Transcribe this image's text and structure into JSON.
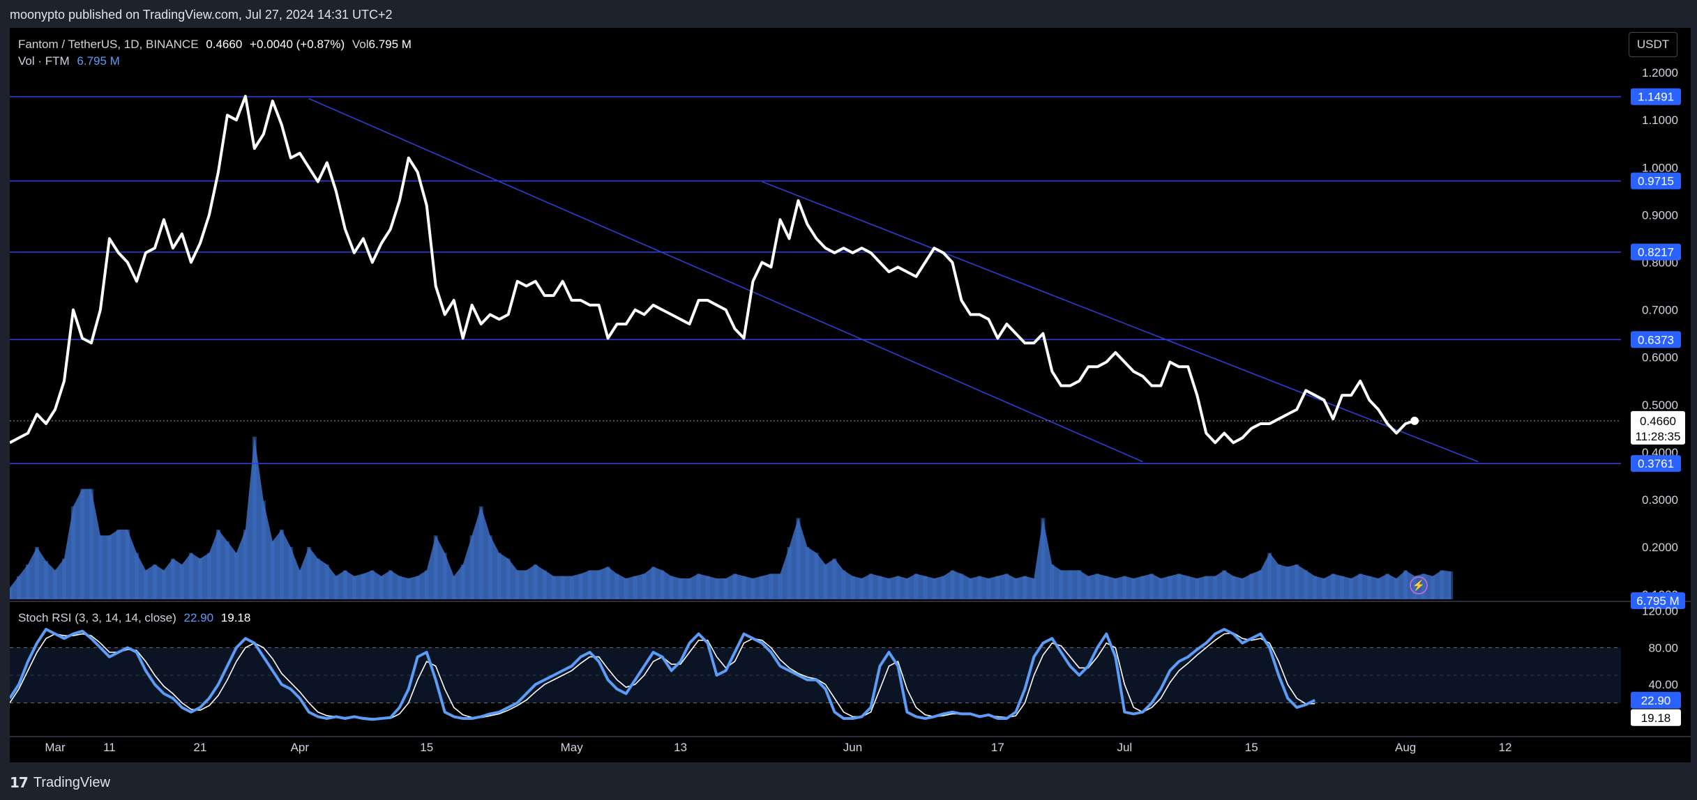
{
  "header": {
    "published": "moonypto published on TradingView.com, Jul 27, 2024 14:31 UTC+2"
  },
  "legend": {
    "symbol": "Fantom / TetherUS, 1D, BINANCE",
    "price": "0.4660",
    "change": "+0.0040 (+0.87%)",
    "vol_label": "Vol",
    "vol_value": "6.795 M",
    "vol_row_label": "Vol · FTM",
    "vol_row_value": "6.795 M"
  },
  "currency_button": "USDT",
  "footer": {
    "logo": "17",
    "brand": "TradingView"
  },
  "colors": {
    "price_line": "#ffffff",
    "level_line": "#2c3fd6",
    "trend_line": "#2c3fd6",
    "volume": "#3d6fc4",
    "rsi_k": "#5b9cf6",
    "rsi_d": "#ffffff",
    "label_blue": "#2962ff"
  },
  "chart_data": {
    "type": "line",
    "title": "Fantom / TetherUS, 1D, BINANCE",
    "y_axis_ticks": [
      "1.2000",
      "1.1000",
      "1.0000",
      "0.9000",
      "0.8000",
      "0.7000",
      "0.6000",
      "0.5000",
      "0.4000",
      "0.3000",
      "0.2000",
      "0.1000"
    ],
    "ylim": [
      0.09,
      1.25
    ],
    "x_axis_ticks": [
      {
        "label": "Mar",
        "day": 5
      },
      {
        "label": "11",
        "day": 11
      },
      {
        "label": "21",
        "day": 21
      },
      {
        "label": "Apr",
        "day": 32
      },
      {
        "label": "15",
        "day": 46
      },
      {
        "label": "May",
        "day": 62
      },
      {
        "label": "13",
        "day": 74
      },
      {
        "label": "Jun",
        "day": 93
      },
      {
        "label": "17",
        "day": 109
      },
      {
        "label": "Jul",
        "day": 123
      },
      {
        "label": "15",
        "day": 137
      },
      {
        "label": "Aug",
        "day": 154
      },
      {
        "label": "12",
        "day": 165
      }
    ],
    "xlim": [
      0,
      177
    ],
    "x_start": "Feb 25, 2024",
    "current_price": "0.4660",
    "countdown": "11:28:35",
    "horizontal_levels": [
      {
        "value": 1.1491,
        "label": "1.1491"
      },
      {
        "value": 0.9715,
        "label": "0.9715"
      },
      {
        "value": 0.8217,
        "label": "0.8217"
      },
      {
        "value": 0.6373,
        "label": "0.6373"
      },
      {
        "value": 0.3761,
        "label": "0.3761"
      }
    ],
    "trend_lines": [
      {
        "from": [
          33,
          1.145
        ],
        "to": [
          125,
          0.38
        ]
      },
      {
        "from": [
          83,
          0.97
        ],
        "to": [
          162,
          0.38
        ]
      }
    ],
    "series": [
      {
        "name": "Close",
        "values": [
          0.42,
          0.43,
          0.44,
          0.48,
          0.46,
          0.49,
          0.55,
          0.7,
          0.64,
          0.63,
          0.7,
          0.85,
          0.82,
          0.8,
          0.76,
          0.82,
          0.83,
          0.89,
          0.83,
          0.86,
          0.8,
          0.84,
          0.9,
          0.99,
          1.11,
          1.1,
          1.15,
          1.04,
          1.07,
          1.14,
          1.09,
          1.02,
          1.03,
          1.0,
          0.97,
          1.01,
          0.95,
          0.87,
          0.82,
          0.85,
          0.8,
          0.84,
          0.87,
          0.93,
          1.02,
          0.99,
          0.92,
          0.75,
          0.69,
          0.72,
          0.64,
          0.71,
          0.67,
          0.69,
          0.68,
          0.69,
          0.76,
          0.75,
          0.76,
          0.73,
          0.73,
          0.76,
          0.72,
          0.72,
          0.71,
          0.71,
          0.64,
          0.67,
          0.67,
          0.7,
          0.69,
          0.71,
          0.7,
          0.69,
          0.68,
          0.67,
          0.72,
          0.72,
          0.71,
          0.7,
          0.66,
          0.64,
          0.76,
          0.8,
          0.79,
          0.89,
          0.85,
          0.93,
          0.88,
          0.85,
          0.83,
          0.82,
          0.83,
          0.82,
          0.83,
          0.82,
          0.8,
          0.78,
          0.79,
          0.78,
          0.77,
          0.8,
          0.83,
          0.82,
          0.8,
          0.72,
          0.69,
          0.69,
          0.68,
          0.64,
          0.67,
          0.65,
          0.63,
          0.63,
          0.65,
          0.57,
          0.54,
          0.54,
          0.55,
          0.58,
          0.58,
          0.59,
          0.61,
          0.59,
          0.57,
          0.56,
          0.54,
          0.54,
          0.59,
          0.58,
          0.58,
          0.52,
          0.44,
          0.42,
          0.44,
          0.42,
          0.43,
          0.45,
          0.46,
          0.46,
          0.47,
          0.48,
          0.49,
          0.53,
          0.52,
          0.51,
          0.47,
          0.52,
          0.52,
          0.55,
          0.51,
          0.49,
          0.46,
          0.44,
          0.46,
          0.466
        ]
      }
    ],
    "volume": {
      "label": "Vol · FTM",
      "last": "6.795 M",
      "values": [
        10,
        20,
        30,
        45,
        33,
        25,
        35,
        80,
        95,
        95,
        55,
        55,
        60,
        60,
        40,
        25,
        30,
        25,
        35,
        30,
        40,
        35,
        40,
        60,
        50,
        40,
        60,
        140,
        85,
        50,
        60,
        45,
        25,
        45,
        35,
        30,
        20,
        25,
        20,
        22,
        25,
        20,
        25,
        20,
        18,
        20,
        25,
        55,
        40,
        20,
        30,
        55,
        80,
        55,
        40,
        35,
        25,
        25,
        30,
        25,
        20,
        20,
        20,
        22,
        25,
        25,
        28,
        22,
        18,
        20,
        22,
        28,
        25,
        20,
        18,
        18,
        22,
        20,
        18,
        18,
        22,
        20,
        18,
        20,
        22,
        22,
        45,
        70,
        45,
        40,
        30,
        35,
        25,
        20,
        18,
        22,
        20,
        18,
        20,
        18,
        22,
        20,
        18,
        20,
        25,
        22,
        18,
        20,
        18,
        20,
        22,
        18,
        20,
        18,
        70,
        30,
        25,
        25,
        25,
        20,
        22,
        20,
        18,
        20,
        18,
        20,
        22,
        18,
        20,
        22,
        20,
        18,
        20,
        20,
        25,
        20,
        18,
        22,
        25,
        40,
        30,
        28,
        30,
        25,
        20,
        18,
        22,
        20,
        18,
        22,
        20,
        18,
        22,
        18,
        25,
        20,
        22,
        20,
        25,
        24
      ]
    },
    "stoch_rsi": {
      "label": "Stoch RSI (3, 3, 14, 14, close)",
      "k_value": "22.90",
      "d_value": "19.18",
      "y_axis_ticks": [
        "120.00",
        "80.00",
        "40.00"
      ],
      "band": [
        20,
        80
      ],
      "k": [
        25,
        40,
        65,
        85,
        100,
        95,
        90,
        95,
        98,
        90,
        80,
        70,
        75,
        80,
        75,
        55,
        40,
        30,
        25,
        15,
        10,
        15,
        25,
        40,
        60,
        80,
        90,
        85,
        70,
        55,
        40,
        35,
        25,
        10,
        5,
        3,
        5,
        3,
        5,
        3,
        2,
        3,
        4,
        15,
        35,
        70,
        75,
        45,
        10,
        5,
        3,
        3,
        5,
        8,
        10,
        15,
        20,
        30,
        40,
        45,
        50,
        55,
        60,
        70,
        75,
        65,
        45,
        35,
        30,
        45,
        60,
        75,
        70,
        55,
        65,
        85,
        95,
        85,
        50,
        55,
        75,
        95,
        90,
        85,
        75,
        60,
        55,
        50,
        45,
        45,
        35,
        10,
        3,
        3,
        5,
        15,
        60,
        75,
        60,
        10,
        5,
        3,
        5,
        8,
        10,
        8,
        8,
        5,
        7,
        3,
        3,
        10,
        35,
        70,
        85,
        90,
        75,
        60,
        50,
        60,
        80,
        95,
        70,
        10,
        8,
        10,
        20,
        35,
        55,
        65,
        70,
        78,
        85,
        95,
        100,
        95,
        85,
        90,
        95,
        80,
        50,
        25,
        15,
        18,
        22.9
      ],
      "d": [
        20,
        35,
        55,
        75,
        90,
        95,
        93,
        93,
        95,
        93,
        85,
        75,
        75,
        78,
        77,
        65,
        50,
        38,
        30,
        20,
        13,
        12,
        17,
        28,
        45,
        65,
        80,
        85,
        80,
        68,
        52,
        42,
        32,
        20,
        10,
        6,
        5,
        4,
        4,
        4,
        3,
        3,
        3,
        8,
        20,
        45,
        65,
        60,
        35,
        15,
        7,
        4,
        4,
        6,
        8,
        12,
        17,
        23,
        32,
        40,
        45,
        50,
        55,
        63,
        70,
        70,
        57,
        45,
        37,
        40,
        50,
        65,
        70,
        62,
        62,
        75,
        88,
        88,
        70,
        58,
        65,
        85,
        90,
        88,
        80,
        67,
        58,
        52,
        48,
        46,
        40,
        25,
        10,
        5,
        5,
        10,
        35,
        60,
        65,
        35,
        15,
        7,
        5,
        6,
        8,
        8,
        8,
        6,
        6,
        5,
        4,
        6,
        20,
        50,
        72,
        85,
        82,
        70,
        58,
        58,
        70,
        85,
        80,
        40,
        15,
        10,
        15,
        25,
        42,
        55,
        63,
        72,
        80,
        88,
        95,
        96,
        90,
        88,
        90,
        85,
        65,
        40,
        25,
        19,
        19.18
      ]
    }
  }
}
